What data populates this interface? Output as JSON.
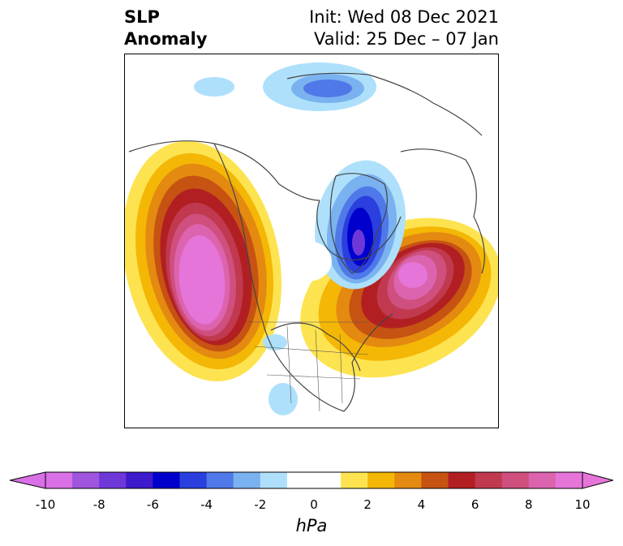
{
  "title": {
    "left_line1": "SLP",
    "left_line2": "Anomaly",
    "right_line1": "Init: Wed 08 Dec 2021",
    "right_line2": "Valid: 25 Dec – 07 Jan"
  },
  "colorbar": {
    "unit": "hPa",
    "ticks": [
      "-10",
      "-8",
      "-6",
      "-4",
      "-2",
      "0",
      "2",
      "4",
      "6",
      "8",
      "10"
    ],
    "colors": [
      "#d970e6",
      "#9f55de",
      "#6e38d8",
      "#3d1acb",
      "#0000cc",
      "#2a3fde",
      "#4f79e8",
      "#7ab2f0",
      "#aee0fb",
      "#ffffff",
      "#ffffff",
      "#fde350",
      "#f4b705",
      "#e48a10",
      "#c65312",
      "#b21f22",
      "#c0394f",
      "#cf4f7e",
      "#dc64ae",
      "#e675d9"
    ]
  },
  "map": {
    "anomalies": [
      {
        "sign": "positive",
        "region": "Northeast Pacific / Western North America",
        "peak_hpa": 10
      },
      {
        "sign": "positive",
        "region": "North Atlantic / Eastern Canada",
        "peak_hpa": 10
      },
      {
        "sign": "negative",
        "region": "Greenland",
        "peak_hpa": -8
      },
      {
        "sign": "negative",
        "region": "Siberian Arctic coast",
        "peak_hpa": -4
      }
    ]
  }
}
